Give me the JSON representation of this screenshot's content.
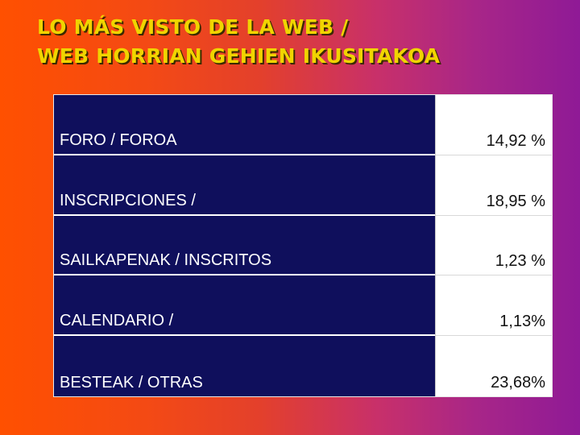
{
  "title": {
    "line1": "LO MÁS VISTO DE LA WEB /",
    "line2": "WEB HORRIAN GEHIEN IKUSITAKOA"
  },
  "table": {
    "rows": [
      {
        "label": "FORO / FOROA",
        "value": "14,92 %"
      },
      {
        "label": "INSCRIPCIONES /",
        "value": "18,95 %"
      },
      {
        "label": "SAILKAPENAK / INSCRITOS",
        "value": "1,23 %"
      },
      {
        "label": "CALENDARIO /",
        "value": "1,13%"
      },
      {
        "label": "BESTEAK / OTRAS",
        "value": "23,68%"
      }
    ]
  },
  "colors": {
    "title_text": "#f0d400",
    "label_cell_bg": "#0f0f5c",
    "value_cell_bg": "#ffffff",
    "background_left": "#ff5000",
    "background_right": "#8f1a96"
  }
}
